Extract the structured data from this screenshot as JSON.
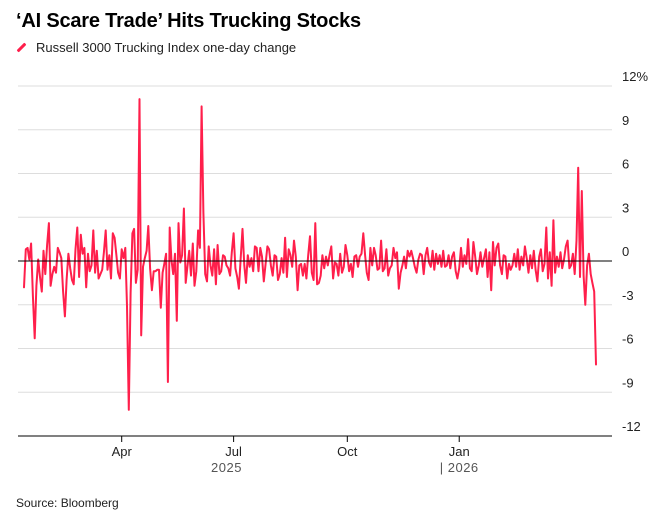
{
  "title": "‘AI Scare Trade’ Hits Trucking Stocks",
  "legend_label": "Russell 3000 Trucking Index one-day change",
  "source": "Source: Bloomberg",
  "colors": {
    "series": "#ff1f4b",
    "grid": "#dddddd",
    "zero": "#000000",
    "axis": "#000000"
  },
  "chart_data": {
    "type": "line",
    "title": "‘AI Scare Trade’ Hits Trucking Stocks",
    "xlabel": "",
    "ylabel": "",
    "ylim": [
      -12,
      12
    ],
    "grid": true,
    "y_axis_side": "right",
    "y_ticks": [
      {
        "value": 12,
        "label": "12%"
      },
      {
        "value": 9,
        "label": "9"
      },
      {
        "value": 6,
        "label": "6"
      },
      {
        "value": 3,
        "label": "3"
      },
      {
        "value": 0,
        "label": "0"
      },
      {
        "value": -3,
        "label": "-3"
      },
      {
        "value": -6,
        "label": "-6"
      },
      {
        "value": -9,
        "label": "-9"
      },
      {
        "value": -12,
        "label": "-12"
      }
    ],
    "x_ticks": [
      {
        "index": 55,
        "label": "Apr"
      },
      {
        "index": 118,
        "label": "Jul"
      },
      {
        "index": 182,
        "label": "Oct"
      },
      {
        "index": 245,
        "label": "Jan"
      }
    ],
    "year_labels": [
      {
        "index": 114,
        "label": "2025"
      },
      {
        "index": 245,
        "label": "| 2026"
      }
    ],
    "series": [
      {
        "name": "Russell 3000 Trucking Index one-day change",
        "values": [
          -1.8,
          0.8,
          0.9,
          0.1,
          1.2,
          -2.4,
          -5.3,
          -1.7,
          0.1,
          -1.1,
          -2.1,
          0.7,
          -0.9,
          1.1,
          2.6,
          -1.7,
          -0.9,
          -0.4,
          -0.8,
          0.9,
          0.6,
          0.2,
          -2.1,
          -3.8,
          -1.3,
          0.5,
          -0.5,
          -1.3,
          -1.6,
          0.8,
          2.3,
          -1.1,
          1.8,
          0.5,
          0.9,
          -1.8,
          0.5,
          -0.7,
          -0.3,
          2.1,
          -0.8,
          0.7,
          -1.2,
          -0.9,
          -0.6,
          0.6,
          2.1,
          -0.6,
          0.4,
          -1.2,
          1.9,
          1.6,
          0.4,
          -0.8,
          -1.2,
          0.8,
          0.2,
          0.9,
          -3.1,
          -10.2,
          -2.2,
          1.9,
          2.2,
          -1.5,
          -0.6,
          11.1,
          -5.1,
          -0.4,
          0.2,
          0.7,
          2.4,
          -0.5,
          -2.0,
          -0.7,
          -0.7,
          -0.6,
          -0.6,
          -3.2,
          -0.8,
          -0.2,
          0.5,
          -8.3,
          2.3,
          0.1,
          -0.9,
          0.5,
          -4.1,
          2.6,
          -0.1,
          0.4,
          3.6,
          -1.5,
          -0.4,
          0.7,
          -1.0,
          1.2,
          -1.7,
          -0.7,
          2.1,
          0.9,
          10.6,
          3.3,
          -0.9,
          -1.4,
          1.0,
          -0.3,
          -1.0,
          0.8,
          -1.6,
          1.1,
          -0.9,
          -0.7,
          0.4,
          0.3,
          -0.3,
          -0.5,
          -1.0,
          0.6,
          1.9,
          -0.5,
          -1.1,
          -1.9,
          0.2,
          2.2,
          -0.3,
          -1.5,
          0.4,
          -0.4,
          0.2,
          -0.7,
          1.0,
          0.9,
          -0.7,
          0.9,
          0.3,
          -1.4,
          -0.2,
          1.0,
          0.8,
          -0.3,
          -1.0,
          0.4,
          0.3,
          -1.3,
          -0.9,
          0.2,
          -0.8,
          1.6,
          -1.1,
          0.8,
          0.4,
          -0.4,
          1.4,
          0.3,
          -2.0,
          -0.3,
          -0.2,
          -1.0,
          -0.2,
          -1.2,
          0.4,
          1.7,
          -0.8,
          -1.3,
          2.6,
          -1.6,
          -1.5,
          -1.0,
          0.4,
          -0.5,
          0.3,
          -0.3,
          0.4,
          1.0,
          -1.2,
          -0.1,
          -0.2,
          -1.0,
          0.5,
          -0.8,
          -0.4,
          1.1,
          0.4,
          -0.7,
          -0.2,
          -1.1,
          0.3,
          0.4,
          -0.4,
          0.3,
          0.5,
          1.9,
          0.4,
          -0.8,
          -1.3,
          0.9,
          -0.3,
          0.9,
          0.4,
          -0.6,
          -0.5,
          1.4,
          -0.7,
          -0.5,
          0.8,
          -1.0,
          -0.5,
          -0.3,
          0.9,
          0.2,
          0.6,
          -1.9,
          -0.8,
          -0.3,
          0.3,
          -0.5,
          0.7,
          0.3,
          0.7,
          0.2,
          -0.4,
          -0.8,
          0.1,
          0.5,
          0.4,
          -0.9,
          0.4,
          0.9,
          -0.1,
          -0.4,
          0.7,
          -0.6,
          0.5,
          -0.2,
          0.4,
          -0.4,
          0.7,
          -0.4,
          -0.3,
          0.4,
          -0.5,
          0.3,
          0.6,
          -0.7,
          -1.2,
          -0.5,
          0.9,
          -0.4,
          0.4,
          -0.2,
          1.5,
          -0.5,
          -0.7,
          1.3,
          0.3,
          -0.9,
          -0.3,
          0.6,
          -0.4,
          0.2,
          0.8,
          -1.1,
          0.6,
          -2.0,
          1.3,
          -0.3,
          0.9,
          1.2,
          -0.3,
          -0.9,
          0.4,
          0.3,
          -1.2,
          -0.2,
          -0.6,
          -0.3,
          0.5,
          -0.4,
          0.8,
          -0.6,
          0.3,
          -0.3,
          1.0,
          0.2,
          -0.8,
          0.4,
          -0.5,
          0.7,
          -0.6,
          -1.4,
          0.3,
          0.8,
          -0.7,
          -0.2,
          2.3,
          -1.2,
          0.6,
          -1.7,
          2.8,
          -0.8,
          0.3,
          -0.4,
          0.6,
          -0.5,
          0.1,
          1.0,
          1.4,
          -0.5,
          -0.3,
          0.5,
          -0.9,
          1.4,
          6.4,
          -1.1,
          4.8,
          -1.0,
          -3.0,
          -0.3,
          0.5,
          -0.9,
          -1.5,
          -2.1,
          -7.1
        ]
      }
    ]
  }
}
